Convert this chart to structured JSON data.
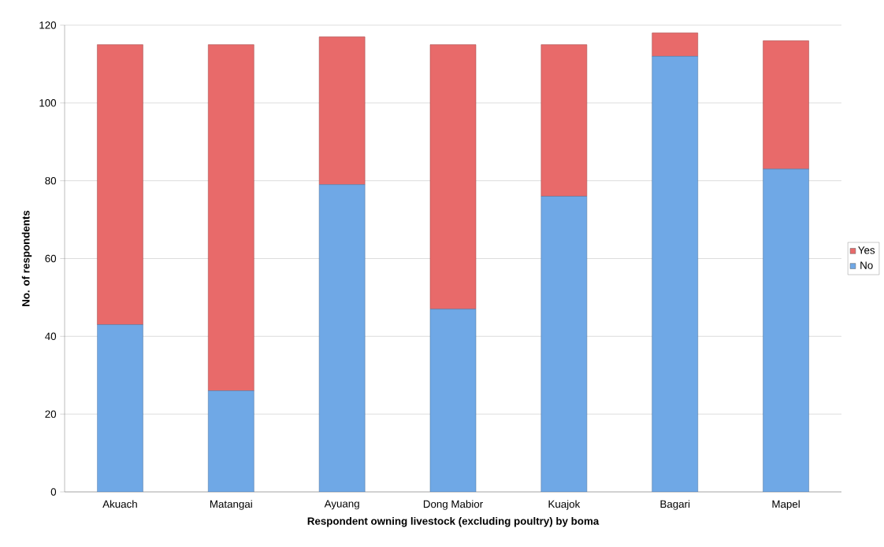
{
  "chart_data": {
    "type": "bar",
    "stacked": true,
    "xlabel": "Respondent owning livestock (excluding poultry) by boma",
    "ylabel": "No. of respondents",
    "categories": [
      "Akuach",
      "Matangai",
      "Ayuang",
      "Dong Mabior",
      "Kuajok",
      "Bagari",
      "Mapel"
    ],
    "series": [
      {
        "name": "No",
        "color": "#6fa8e6",
        "values": [
          43,
          26,
          79,
          47,
          76,
          112,
          83
        ]
      },
      {
        "name": "Yes",
        "color": "#e86a6a",
        "values": [
          72,
          89,
          38,
          68,
          39,
          6,
          33
        ]
      }
    ],
    "ylim": [
      0,
      120
    ],
    "yticks": [
      0,
      20,
      40,
      60,
      80,
      100,
      120
    ],
    "grid": "y",
    "legend": "right"
  }
}
